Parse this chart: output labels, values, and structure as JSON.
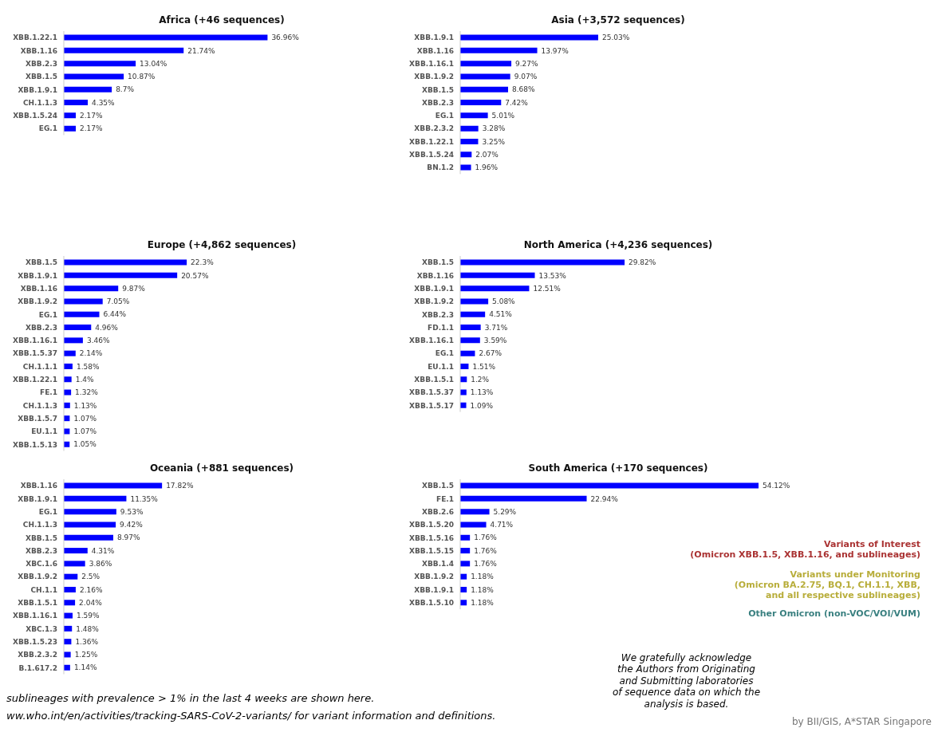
{
  "chart_data": [
    {
      "type": "bar",
      "orientation": "horizontal",
      "title": "Africa (+46 sequences)",
      "color": "#0000ff",
      "categories": [
        "XBB.1.22.1",
        "XBB.1.16",
        "XBB.2.3",
        "XBB.1.5",
        "XBB.1.9.1",
        "CH.1.1.3",
        "XBB.1.5.24",
        "EG.1"
      ],
      "values": [
        36.96,
        21.74,
        13.04,
        10.87,
        8.7,
        4.35,
        2.17,
        2.17
      ],
      "value_labels": [
        "36.96%",
        "21.74%",
        "13.04%",
        "10.87%",
        "8.7%",
        "4.35%",
        "2.17%",
        "2.17%"
      ]
    },
    {
      "type": "bar",
      "orientation": "horizontal",
      "title": "Asia (+3,572 sequences)",
      "color": "#0000ff",
      "categories": [
        "XBB.1.9.1",
        "XBB.1.16",
        "XBB.1.16.1",
        "XBB.1.9.2",
        "XBB.1.5",
        "XBB.2.3",
        "EG.1",
        "XBB.2.3.2",
        "XBB.1.22.1",
        "XBB.1.5.24",
        "BN.1.2"
      ],
      "values": [
        25.03,
        13.97,
        9.27,
        9.07,
        8.68,
        7.42,
        5.01,
        3.28,
        3.25,
        2.07,
        1.96
      ],
      "value_labels": [
        "25.03%",
        "13.97%",
        "9.27%",
        "9.07%",
        "8.68%",
        "7.42%",
        "5.01%",
        "3.28%",
        "3.25%",
        "2.07%",
        "1.96%"
      ]
    },
    {
      "type": "bar",
      "orientation": "horizontal",
      "title": "Europe (+4,862 sequences)",
      "color": "#0000ff",
      "categories": [
        "XBB.1.5",
        "XBB.1.9.1",
        "XBB.1.16",
        "XBB.1.9.2",
        "EG.1",
        "XBB.2.3",
        "XBB.1.16.1",
        "XBB.1.5.37",
        "CH.1.1.1",
        "XBB.1.22.1",
        "FE.1",
        "CH.1.1.3",
        "XBB.1.5.7",
        "EU.1.1",
        "XBB.1.5.13"
      ],
      "values": [
        22.3,
        20.57,
        9.87,
        7.05,
        6.44,
        4.96,
        3.46,
        2.14,
        1.58,
        1.4,
        1.32,
        1.13,
        1.07,
        1.07,
        1.05
      ],
      "value_labels": [
        "22.3%",
        "20.57%",
        "9.87%",
        "7.05%",
        "6.44%",
        "4.96%",
        "3.46%",
        "2.14%",
        "1.58%",
        "1.4%",
        "1.32%",
        "1.13%",
        "1.07%",
        "1.07%",
        "1.05%"
      ]
    },
    {
      "type": "bar",
      "orientation": "horizontal",
      "title": "North America (+4,236 sequences)",
      "color": "#0000ff",
      "categories": [
        "XBB.1.5",
        "XBB.1.16",
        "XBB.1.9.1",
        "XBB.1.9.2",
        "XBB.2.3",
        "FD.1.1",
        "XBB.1.16.1",
        "EG.1",
        "EU.1.1",
        "XBB.1.5.1",
        "XBB.1.5.37",
        "XBB.1.5.17"
      ],
      "values": [
        29.82,
        13.53,
        12.51,
        5.08,
        4.51,
        3.71,
        3.59,
        2.67,
        1.51,
        1.2,
        1.13,
        1.09
      ],
      "value_labels": [
        "29.82%",
        "13.53%",
        "12.51%",
        "5.08%",
        "4.51%",
        "3.71%",
        "3.59%",
        "2.67%",
        "1.51%",
        "1.2%",
        "1.13%",
        "1.09%"
      ]
    },
    {
      "type": "bar",
      "orientation": "horizontal",
      "title": "Oceania (+881 sequences)",
      "color": "#0000ff",
      "categories": [
        "XBB.1.16",
        "XBB.1.9.1",
        "EG.1",
        "CH.1.1.3",
        "XBB.1.5",
        "XBB.2.3",
        "XBC.1.6",
        "XBB.1.9.2",
        "CH.1.1",
        "XBB.1.5.1",
        "XBB.1.16.1",
        "XBC.1.3",
        "XBB.1.5.23",
        "XBB.2.3.2",
        "B.1.617.2"
      ],
      "values": [
        17.82,
        11.35,
        9.53,
        9.42,
        8.97,
        4.31,
        3.86,
        2.5,
        2.16,
        2.04,
        1.59,
        1.48,
        1.36,
        1.25,
        1.14
      ],
      "value_labels": [
        "17.82%",
        "11.35%",
        "9.53%",
        "9.42%",
        "8.97%",
        "4.31%",
        "3.86%",
        "2.5%",
        "2.16%",
        "2.04%",
        "1.59%",
        "1.48%",
        "1.36%",
        "1.25%",
        "1.14%"
      ]
    },
    {
      "type": "bar",
      "orientation": "horizontal",
      "title": "South America (+170 sequences)",
      "color": "#0000ff",
      "categories": [
        "XBB.1.5",
        "FE.1",
        "XBB.2.6",
        "XBB.1.5.20",
        "XBB.1.5.16",
        "XBB.1.5.15",
        "XBB.1.4",
        "XBB.1.9.2",
        "XBB.1.9.1",
        "XBB.1.5.10"
      ],
      "values": [
        54.12,
        22.94,
        5.29,
        4.71,
        1.76,
        1.76,
        1.76,
        1.18,
        1.18,
        1.18
      ],
      "value_labels": [
        "54.12%",
        "22.94%",
        "5.29%",
        "4.71%",
        "1.76%",
        "1.76%",
        "1.76%",
        "1.18%",
        "1.18%",
        "1.18%"
      ]
    },
    {
      "type": "other",
      "annotations": [
        "Variants of Interest\n(Omicron XBB.1.5, XBB.1.16, and sublineages)",
        "Variants under Monitoring\n(Omicron BA.2.75, BQ.1, CH.1.1, XBB,\nand all respective sublineages)",
        "Other Omicron (non-VOC/VOI/VUM)",
        "We gratefully acknowledge\nthe Authors from Originating\nand Submitting laboratories\nof sequence data on which the\nanalysis is based.",
        "sublineages with prevalence > 1% in the last 4 weeks are shown here.",
        "ww.who.int/en/activities/tracking-SARS-CoV-2-variants/ for variant information and definitions.",
        "by BII/GIS, A*STAR Singapore"
      ]
    }
  ]
}
